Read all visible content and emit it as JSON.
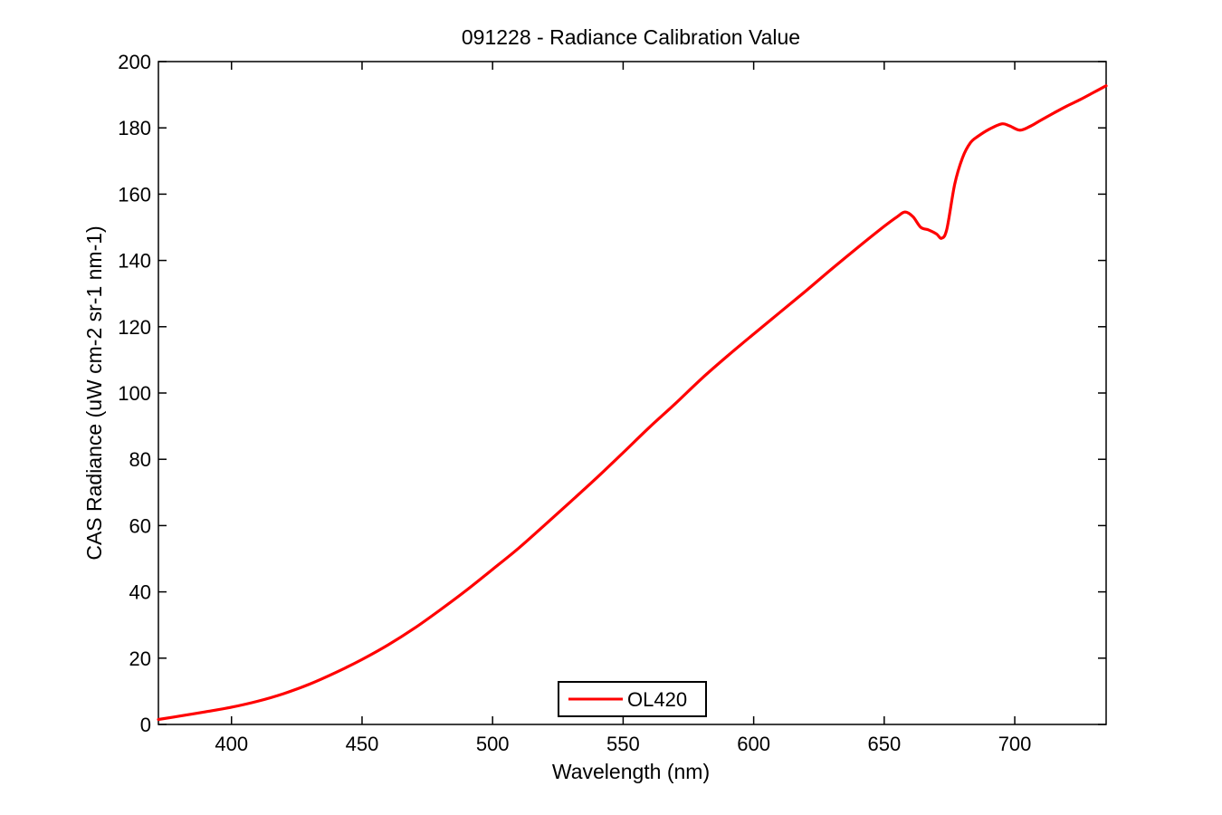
{
  "chart_data": {
    "type": "line",
    "title": "091228 - Radiance Calibration Value",
    "xlabel": "Wavelength (nm)",
    "ylabel": "CAS Radiance (uW cm-2 sr-1 nm-1)",
    "xlim": [
      372,
      735
    ],
    "ylim": [
      0,
      200
    ],
    "xticks": [
      400,
      450,
      500,
      550,
      600,
      650,
      700
    ],
    "yticks": [
      0,
      20,
      40,
      60,
      80,
      100,
      120,
      140,
      160,
      180,
      200
    ],
    "grid": false,
    "legend_position": "bottom-center",
    "series": [
      {
        "name": "OL420",
        "color": "#ff0000",
        "x": [
          372,
          380,
          390,
          400,
          410,
          420,
          430,
          440,
          450,
          460,
          470,
          480,
          490,
          500,
          510,
          520,
          530,
          540,
          550,
          560,
          570,
          580,
          590,
          600,
          610,
          620,
          630,
          640,
          650,
          655,
          658,
          661,
          664,
          667,
          670,
          672,
          674,
          677,
          680,
          683,
          686,
          690,
          695,
          698,
          702,
          706,
          710,
          715,
          720,
          725,
          730,
          735
        ],
        "y": [
          1.5,
          2.5,
          3.8,
          5.2,
          7.0,
          9.3,
          12.2,
          15.7,
          19.6,
          24.0,
          29.0,
          34.6,
          40.5,
          46.8,
          53.2,
          60.2,
          67.3,
          74.5,
          82.0,
          89.6,
          96.8,
          104.3,
          111.2,
          117.8,
          124.3,
          130.8,
          137.5,
          144.0,
          150.3,
          153.2,
          154.6,
          153.2,
          150.0,
          149.2,
          148.0,
          146.7,
          149.5,
          163.0,
          171.0,
          175.5,
          177.5,
          179.5,
          181.2,
          180.6,
          179.3,
          180.5,
          182.3,
          184.5,
          186.6,
          188.5,
          190.6,
          192.7
        ]
      }
    ]
  }
}
